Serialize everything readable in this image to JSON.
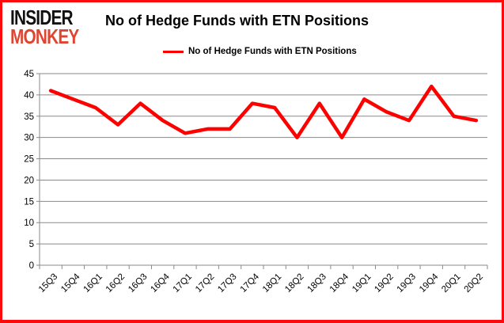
{
  "header": {
    "logo_line1": "INSIDER",
    "logo_line2": "MONKEY",
    "title": "No of Hedge Funds with ETN Positions"
  },
  "legend": {
    "label": "No of Hedge Funds with ETN Positions",
    "line_color": "#ff0000"
  },
  "chart_data": {
    "type": "line",
    "title": "No of Hedge Funds with ETN Positions",
    "categories": [
      "15Q3",
      "15Q4",
      "16Q1",
      "16Q2",
      "16Q3",
      "16Q4",
      "17Q1",
      "17Q2",
      "17Q3",
      "17Q4",
      "18Q1",
      "18Q2",
      "18Q3",
      "18Q4",
      "19Q1",
      "19Q2",
      "19Q3",
      "19Q4",
      "20Q1",
      "20Q2"
    ],
    "series": [
      {
        "name": "No of Hedge Funds with ETN Positions",
        "color": "#ff0000",
        "values": [
          41,
          39,
          37,
          33,
          38,
          34,
          31,
          32,
          32,
          38,
          37,
          30,
          38,
          30,
          39,
          36,
          34,
          42,
          35,
          34
        ]
      }
    ],
    "xlabel": "",
    "ylabel": "",
    "ylim": [
      0,
      45
    ],
    "ytick_step": 5,
    "grid": true,
    "legend_position": "top"
  },
  "colors": {
    "border": "#fb0b0b",
    "grid": "#8a8a8a",
    "axis": "#8a8a8a",
    "logo_black": "#111111",
    "logo_red": "#df4631"
  }
}
